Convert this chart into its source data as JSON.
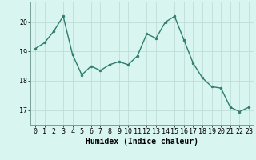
{
  "x": [
    0,
    1,
    2,
    3,
    4,
    5,
    6,
    7,
    8,
    9,
    10,
    11,
    12,
    13,
    14,
    15,
    16,
    17,
    18,
    19,
    20,
    21,
    22,
    23
  ],
  "y": [
    19.1,
    19.3,
    19.7,
    20.2,
    18.9,
    18.2,
    18.5,
    18.35,
    18.55,
    18.65,
    18.55,
    18.85,
    19.6,
    19.45,
    20.0,
    20.2,
    19.4,
    18.6,
    18.1,
    17.8,
    17.75,
    17.1,
    16.95,
    17.1
  ],
  "line_color": "#2e7d6e",
  "marker": "o",
  "markersize": 2.0,
  "linewidth": 1.0,
  "bg_color": "#d8f5f0",
  "grid_color": "#c0dcd8",
  "xlabel": "Humidex (Indice chaleur)",
  "xlabel_fontsize": 7,
  "tick_fontsize": 6,
  "ylim": [
    16.5,
    20.7
  ],
  "yticks": [
    17,
    18,
    19,
    20
  ],
  "xticks": [
    0,
    1,
    2,
    3,
    4,
    5,
    6,
    7,
    8,
    9,
    10,
    11,
    12,
    13,
    14,
    15,
    16,
    17,
    18,
    19,
    20,
    21,
    22,
    23
  ],
  "xlim": [
    -0.5,
    23.5
  ]
}
